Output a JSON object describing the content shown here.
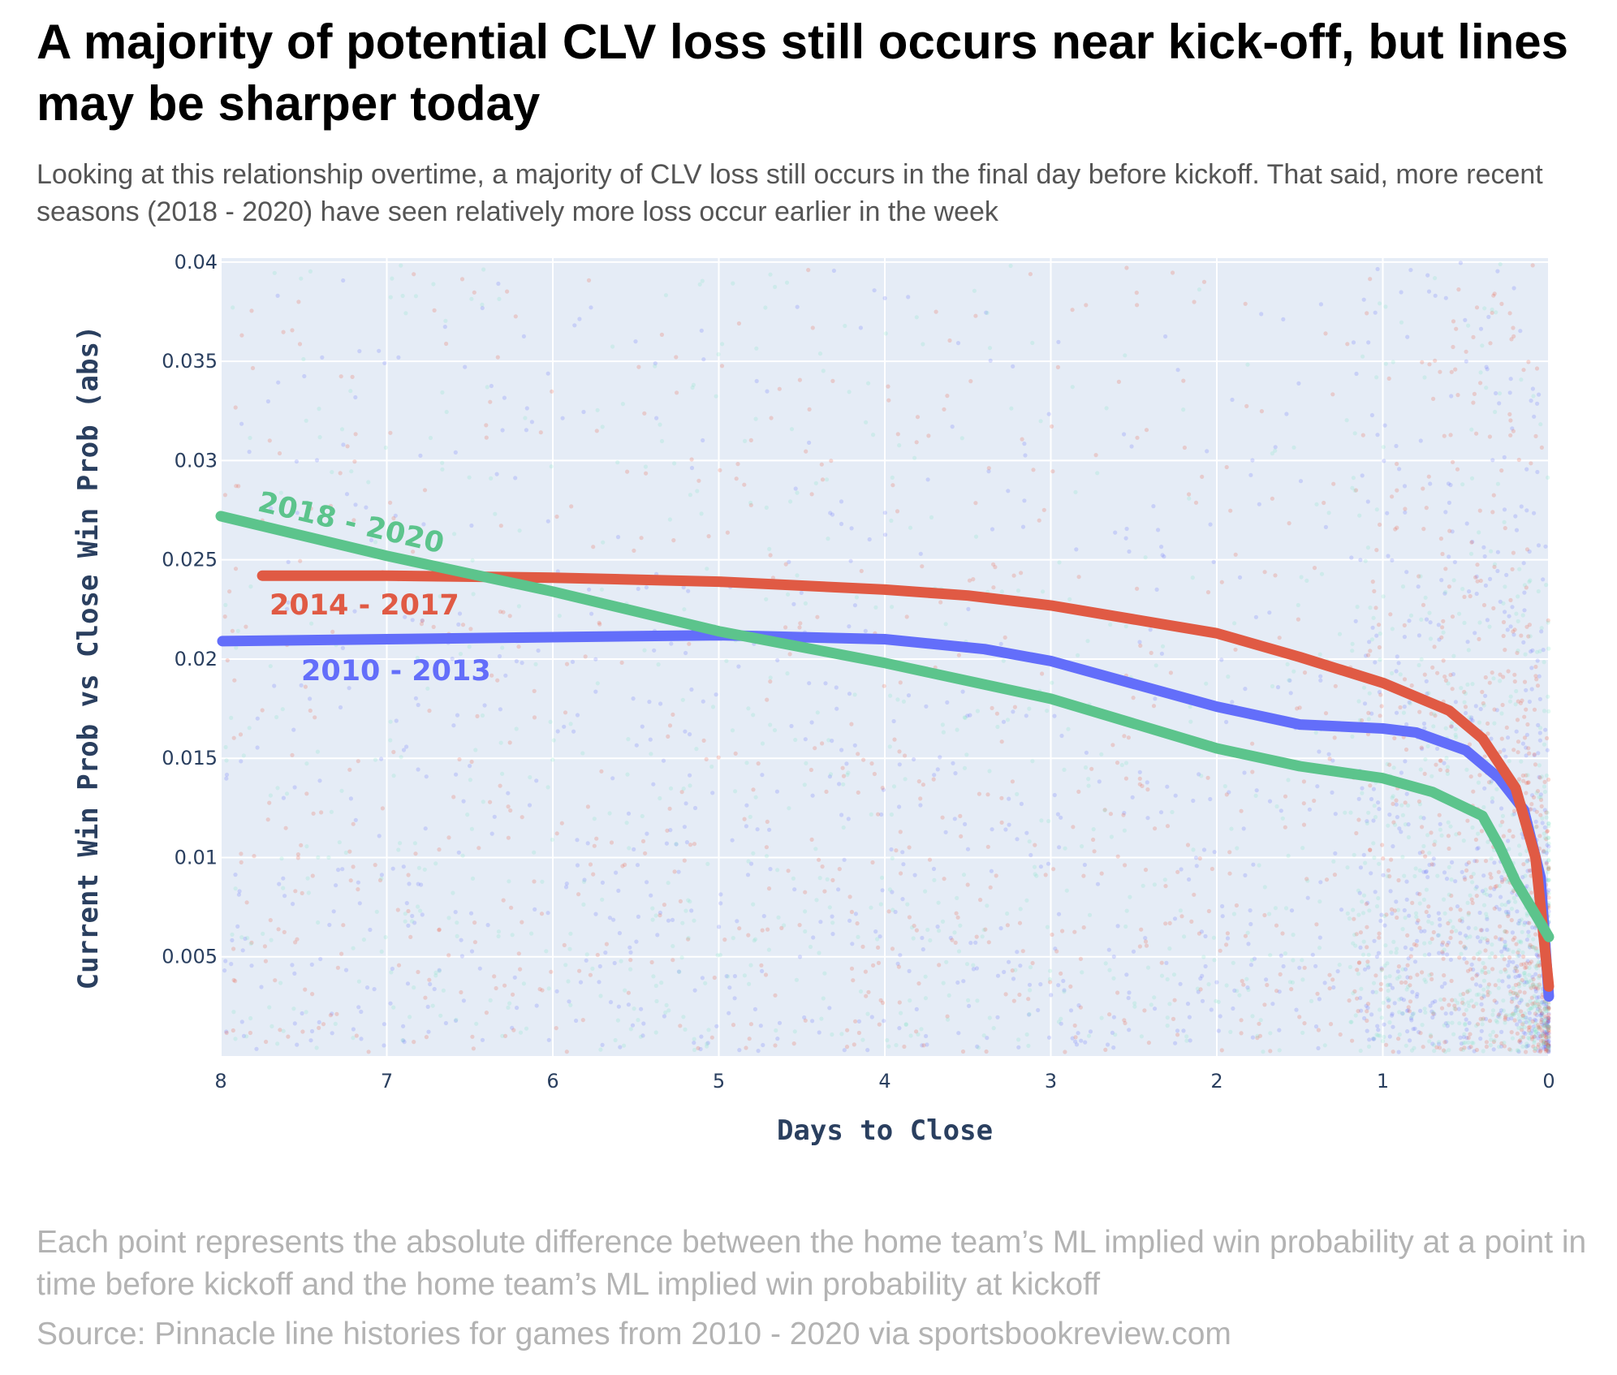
{
  "header": {
    "title": "A majority of potential CLV loss still occurs near kick-off, but lines may be sharper today",
    "subtitle": "Looking at this relationship overtime, a majority of CLV loss still occurs in the final day before kickoff. That said, more recent seasons (2018 - 2020) have seen relatively more loss occur earlier in the week"
  },
  "footer": {
    "note": "Each point represents the absolute difference between the home team’s ML implied win probability at a point in time before kickoff and the home team’s ML implied win probability at kickoff",
    "source": "Source: Pinnacle line histories for games from 2010 - 2020 via sportsbookreview.com"
  },
  "chart_data": {
    "type": "scatter",
    "title": "A majority of potential CLV loss still occurs near kick-off, but lines may be sharper today",
    "xlabel": "Days to Close",
    "ylabel": "Current Win Prob vs Close Win Prob (abs)",
    "xlim": [
      8,
      0
    ],
    "ylim": [
      0,
      0.0402
    ],
    "x_ticks": [
      8,
      7,
      6,
      5,
      4,
      3,
      2,
      1,
      0
    ],
    "x_tick_labels": [
      "8",
      "7",
      "6",
      "5",
      "4",
      "3",
      "2",
      "1",
      "0"
    ],
    "y_ticks": [
      0.005,
      0.01,
      0.015,
      0.02,
      0.025,
      0.03,
      0.035,
      0.04
    ],
    "y_tick_labels": [
      "0.005",
      "0.01",
      "0.015",
      "0.02",
      "0.025",
      "0.03",
      "0.035",
      "0.04"
    ],
    "grid": true,
    "legend": "none (series labeled directly on the lines)",
    "background_color": "#e5ecf6",
    "series": [
      {
        "name": "2010 - 2013",
        "color": "#636efa",
        "points_color": "#636efa",
        "trend": {
          "x": [
            7.99,
            7,
            6,
            5,
            4,
            3.4,
            3,
            2,
            1.5,
            1,
            0.8,
            0.5,
            0.3,
            0.15,
            0.05,
            0
          ],
          "y": [
            0.0209,
            0.021,
            0.0211,
            0.0212,
            0.021,
            0.0205,
            0.0199,
            0.0176,
            0.0167,
            0.0165,
            0.0163,
            0.0154,
            0.014,
            0.0124,
            0.009,
            0.003
          ]
        }
      },
      {
        "name": "2014 - 2017",
        "color": "#e05a44",
        "points_color": "#ef553b",
        "trend": {
          "x": [
            7.75,
            7,
            6,
            5,
            4,
            3.5,
            3,
            2,
            1.5,
            1,
            0.8,
            0.6,
            0.4,
            0.2,
            0.08,
            0
          ],
          "y": [
            0.0242,
            0.0242,
            0.0241,
            0.0239,
            0.0235,
            0.0232,
            0.0227,
            0.0213,
            0.0201,
            0.0188,
            0.0181,
            0.0174,
            0.016,
            0.0135,
            0.01,
            0.0035
          ]
        }
      },
      {
        "name": "2018 - 2020",
        "color": "#5cc48c",
        "points_color": "#7fe3c2",
        "trend": {
          "x": [
            8,
            7,
            6,
            5,
            4,
            3,
            2,
            1.5,
            1,
            0.7,
            0.4,
            0.3,
            0.2,
            0.1,
            0
          ],
          "y": [
            0.0272,
            0.0252,
            0.0234,
            0.0214,
            0.0198,
            0.018,
            0.0155,
            0.0146,
            0.014,
            0.0133,
            0.0121,
            0.0106,
            0.0088,
            0.0074,
            0.006
          ]
        }
      }
    ]
  }
}
